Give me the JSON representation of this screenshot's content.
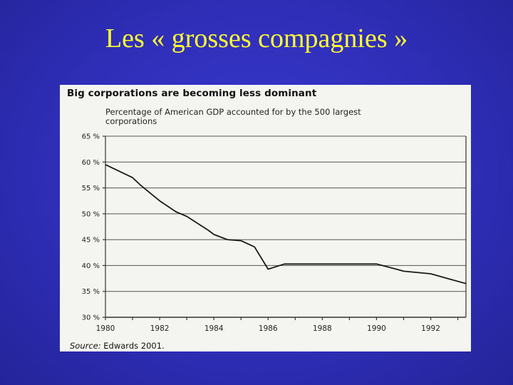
{
  "slide": {
    "title": "Les « grosses compagnies »"
  },
  "chart_data": {
    "type": "line",
    "title": "Big corporations are becoming less dominant",
    "subtitle": "Percentage of American GDP accounted for by the 500 largest corporations",
    "source_label": "Source:",
    "source_text": "Edwards 2001.",
    "xlabel": "",
    "ylabel": "",
    "x_ticks": [
      "1980",
      "1982",
      "1984",
      "1986",
      "1988",
      "1990",
      "1992"
    ],
    "y_ticks": [
      "30 %",
      "35 %",
      "40 %",
      "45 %",
      "50 %",
      "55 %",
      "60 %",
      "65 %"
    ],
    "xlim": [
      1980,
      1993.3
    ],
    "ylim": [
      30,
      65
    ],
    "grid": "horizontal",
    "series": [
      {
        "x": [
          1980,
          1981,
          1981.3,
          1982,
          1982.6,
          1983,
          1983.8,
          1984,
          1984.5,
          1985,
          1985.5,
          1986,
          1986.6,
          1987,
          1988,
          1989,
          1990,
          1990.8,
          1991,
          1992,
          1993.3
        ],
        "y": [
          59.5,
          57.0,
          55.5,
          52.5,
          50.4,
          49.5,
          46.8,
          46.0,
          45.0,
          44.8,
          43.6,
          39.3,
          40.3,
          40.3,
          40.3,
          40.3,
          40.3,
          39.2,
          38.9,
          38.4,
          36.5
        ]
      }
    ]
  }
}
